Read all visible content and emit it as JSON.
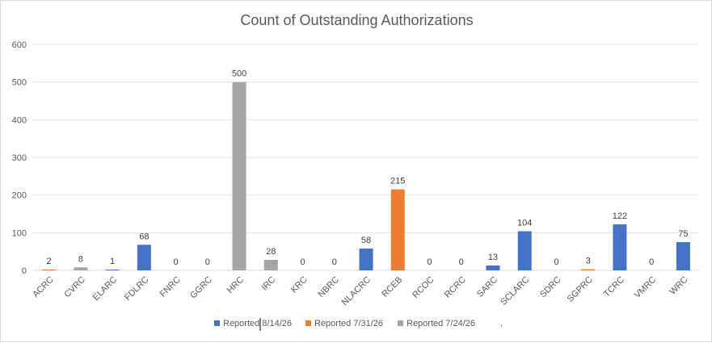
{
  "chart_data": {
    "type": "bar",
    "title": "Count of Outstanding Authorizations",
    "xlabel": "",
    "ylabel": "",
    "ylim": [
      0,
      600
    ],
    "yticks": [
      "0",
      "100",
      "200",
      "300",
      "400",
      "500",
      "600"
    ],
    "grid": true,
    "legend_position": "bottom",
    "categories": [
      "ACRC",
      "CVRC",
      "ELARC",
      "FDLRC",
      "FNRC",
      "GGRC",
      "HRC",
      "IRC",
      "KRC",
      "NBRC",
      "NLACRC",
      "RCEB",
      "RCOC",
      "RCRC",
      "SARC",
      "SCLARC",
      "SDRC",
      "SGPRC",
      "TCRC",
      "VMRC",
      "WRC"
    ],
    "series": [
      {
        "name": "Reported 8/14/26",
        "color": "#4472c4"
      },
      {
        "name": "Reported 7/31/26",
        "color": "#ed7d31"
      },
      {
        "name": "Reported 7/24/26",
        "color": "#a5a5a5"
      }
    ],
    "bars": [
      {
        "category": "ACRC",
        "series": 1,
        "value": 2,
        "label": "2"
      },
      {
        "category": "CVRC",
        "series": 2,
        "value": 8,
        "label": "8"
      },
      {
        "category": "ELARC",
        "series": 0,
        "value": 1,
        "label": "1"
      },
      {
        "category": "FDLRC",
        "series": 0,
        "value": 68,
        "label": "68"
      },
      {
        "category": "FNRC",
        "series": 0,
        "value": 0,
        "label": "0"
      },
      {
        "category": "GGRC",
        "series": 0,
        "value": 0,
        "label": "0"
      },
      {
        "category": "HRC",
        "series": 2,
        "value": 500,
        "label": "500"
      },
      {
        "category": "IRC",
        "series": 2,
        "value": 28,
        "label": "28"
      },
      {
        "category": "KRC",
        "series": 0,
        "value": 0,
        "label": "0"
      },
      {
        "category": "NBRC",
        "series": 0,
        "value": 0,
        "label": "0"
      },
      {
        "category": "NLACRC",
        "series": 0,
        "value": 58,
        "label": "58"
      },
      {
        "category": "RCEB",
        "series": 1,
        "value": 215,
        "label": "215"
      },
      {
        "category": "RCOC",
        "series": 0,
        "value": 0,
        "label": "0"
      },
      {
        "category": "RCRC",
        "series": 0,
        "value": 0,
        "label": "0"
      },
      {
        "category": "SARC",
        "series": 0,
        "value": 13,
        "label": "13"
      },
      {
        "category": "SCLARC",
        "series": 0,
        "value": 104,
        "label": "104"
      },
      {
        "category": "SDRC",
        "series": 0,
        "value": 0,
        "label": "0"
      },
      {
        "category": "SGPRC",
        "series": 1,
        "value": 3,
        "label": "3"
      },
      {
        "category": "TCRC",
        "series": 0,
        "value": 122,
        "label": "122"
      },
      {
        "category": "VMRC",
        "series": 0,
        "value": 0,
        "label": "0"
      },
      {
        "category": "WRC",
        "series": 0,
        "value": 75,
        "label": "75"
      }
    ],
    "legend_trailing_mark": "."
  }
}
